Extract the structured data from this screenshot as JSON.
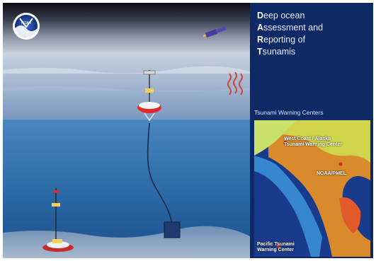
{
  "title": {
    "line1_initial": "D",
    "line1_rest": "eep ocean",
    "line2_initial": "A",
    "line2_rest": "ssessment and",
    "line3_initial": "R",
    "line3_rest": "eporting of",
    "line4_initial": "T",
    "line4_rest": "sunamis"
  },
  "logo": {
    "text": "NOAA"
  },
  "warning_centers": {
    "heading": "Tsunami Warning Centers",
    "west_coast": "West Coast / Alaska Tsunami Warning Center",
    "pmel": "NOAA/PMEL",
    "pacific": "Pacific Tsunami Warning Center"
  },
  "colors": {
    "sky_top": "#0b0b12",
    "sea_surface": "#8fa8c9",
    "deep_water": "#2a68a8",
    "panel": "#0d2a66",
    "marker": "#d92a2a"
  }
}
